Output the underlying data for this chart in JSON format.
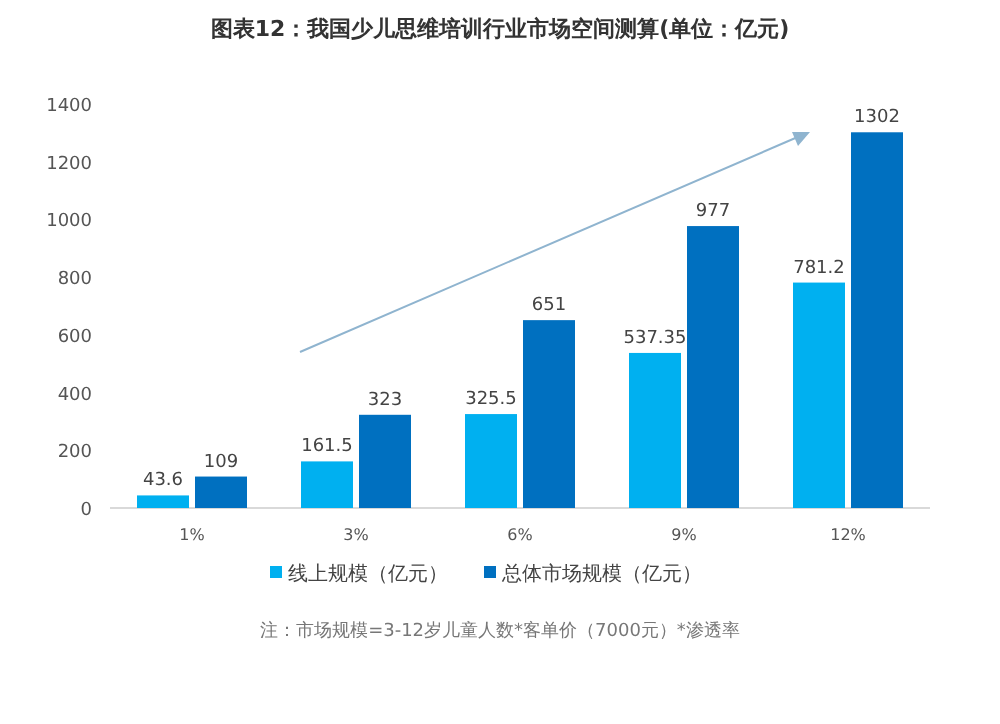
{
  "chart_data": {
    "type": "bar",
    "title": "图表12：我国少儿思维培训行业市场空间测算(单位：亿元)",
    "categories": [
      "1%",
      "3%",
      "6%",
      "9%",
      "12%"
    ],
    "series": [
      {
        "name": "线上规模（亿元）",
        "color": "#00b0f0",
        "values": [
          43.6,
          161.5,
          325.5,
          537.35,
          781.2
        ]
      },
      {
        "name": "总体市场规模（亿元）",
        "color": "#0070c0",
        "values": [
          109,
          323,
          651,
          977,
          1302
        ]
      }
    ],
    "ylim": [
      0,
      1400
    ],
    "yticks": [
      0,
      200,
      400,
      600,
      800,
      1000,
      1200,
      1400
    ],
    "data_labels": true,
    "grid": false,
    "legend": "bottom",
    "annotations": [
      "注：市场规模=3-12岁儿童人数*客单价（7000元）*渗透率"
    ]
  }
}
